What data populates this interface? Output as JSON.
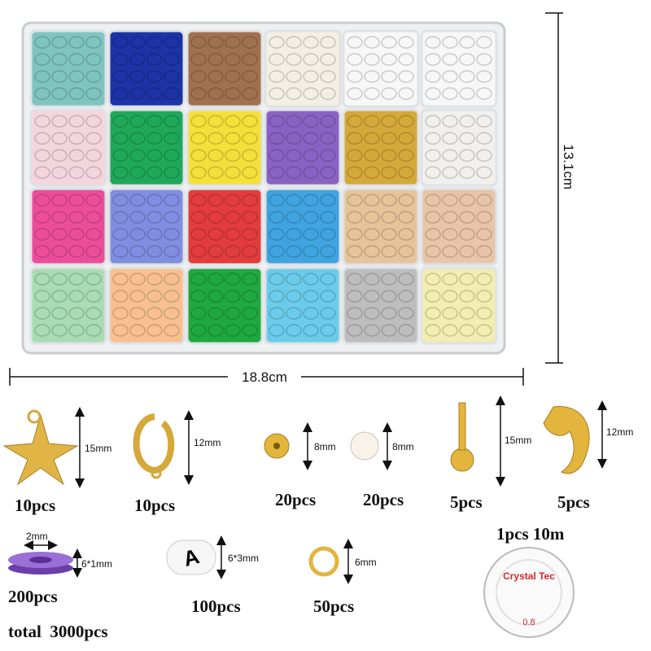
{
  "tray": {
    "height": "13.1cm",
    "width": "18.8cm"
  },
  "items": [
    {
      "count": "10pcs",
      "size": "15mm"
    },
    {
      "count": "10pcs",
      "size": "12mm"
    },
    {
      "count": "20pcs",
      "size": "8mm"
    },
    {
      "count": "20pcs",
      "size": "8mm"
    },
    {
      "count": "5pcs",
      "size": "15mm"
    },
    {
      "count": "5pcs",
      "size": "12mm"
    }
  ],
  "spool": {
    "count": "1pcs 10m",
    "brand": "Crystal Tec",
    "gauge": "0.8"
  },
  "clay_disc": {
    "hole": "2mm",
    "size": "6*1mm",
    "count": "200pcs"
  },
  "letter_bead": {
    "letter": "A",
    "size": "6*3mm",
    "count": "100pcs"
  },
  "jump_ring": {
    "size": "6mm",
    "count": "50pcs"
  },
  "total": "total  3000pcs"
}
